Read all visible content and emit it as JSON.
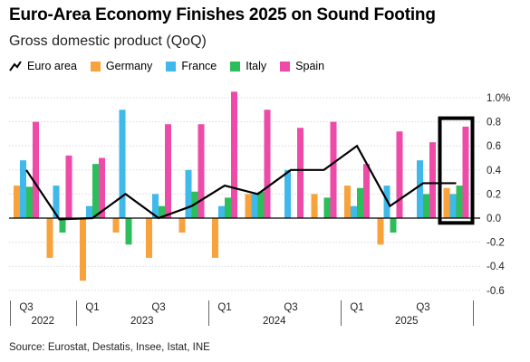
{
  "chart_data": {
    "type": "bar",
    "title": "Euro-Area Economy Finishes 2025 on Sound Footing",
    "subtitle": "Gross domestic product (QoQ)",
    "source": "Source: Eurostat, Destatis, Insee, Istat, INE",
    "unit_suffix": "%",
    "ylim": [
      -0.65,
      1.1
    ],
    "yticks": [
      1.0,
      0.8,
      0.6,
      0.4,
      0.2,
      0.0,
      -0.2,
      -0.4,
      -0.6
    ],
    "grid": "horizontal",
    "legend_position": "top-left",
    "quarters": [
      "Q3 2022",
      "Q4 2022",
      "Q1 2023",
      "Q2 2023",
      "Q3 2023",
      "Q4 2023",
      "Q1 2024",
      "Q2 2024",
      "Q3 2024",
      "Q4 2024",
      "Q1 2025",
      "Q2 2025",
      "Q3 2025",
      "Q4 2025"
    ],
    "x_tick_labels": [
      {
        "quarter": 0,
        "label": "Q3"
      },
      {
        "quarter": 2,
        "label": "Q1"
      },
      {
        "quarter": 4,
        "label": "Q3"
      },
      {
        "quarter": 6,
        "label": "Q1"
      },
      {
        "quarter": 8,
        "label": "Q3"
      },
      {
        "quarter": 10,
        "label": "Q1"
      },
      {
        "quarter": 12,
        "label": "Q3"
      }
    ],
    "year_labels": [
      {
        "label": "2022",
        "start": 0,
        "end": 1
      },
      {
        "label": "2023",
        "start": 2,
        "end": 5
      },
      {
        "label": "2024",
        "start": 6,
        "end": 9
      },
      {
        "label": "2025",
        "start": 10,
        "end": 13
      }
    ],
    "bar_series": [
      {
        "name": "Germany",
        "color": "#f7a23b",
        "values": [
          0.27,
          -0.33,
          -0.52,
          -0.12,
          -0.33,
          -0.12,
          -0.33,
          0.2,
          0.0,
          0.2,
          0.27,
          -0.22,
          0.0,
          0.25
        ]
      },
      {
        "name": "France",
        "color": "#3fb8ea",
        "values": [
          0.48,
          0.27,
          0.1,
          0.9,
          0.2,
          0.4,
          0.1,
          0.2,
          0.4,
          0.0,
          0.1,
          0.27,
          0.48,
          0.2
        ]
      },
      {
        "name": "Italy",
        "color": "#2dbd5a",
        "values": [
          0.26,
          -0.12,
          0.45,
          -0.22,
          0.1,
          0.22,
          0.17,
          0.22,
          0.0,
          0.17,
          0.25,
          -0.12,
          0.2,
          0.27
        ]
      },
      {
        "name": "Spain",
        "color": "#ee4aa8",
        "values": [
          0.8,
          0.52,
          0.5,
          0.0,
          0.78,
          0.78,
          1.05,
          0.9,
          0.75,
          0.8,
          0.45,
          0.72,
          0.63,
          0.76
        ]
      }
    ],
    "line_series": {
      "name": "Euro area",
      "color": "#000000",
      "values": [
        0.4,
        -0.01,
        0.0,
        0.2,
        0.0,
        0.1,
        0.27,
        0.2,
        0.4,
        0.4,
        0.6,
        0.1,
        0.29,
        0.29
      ]
    },
    "highlight": {
      "quarter": 13
    }
  }
}
